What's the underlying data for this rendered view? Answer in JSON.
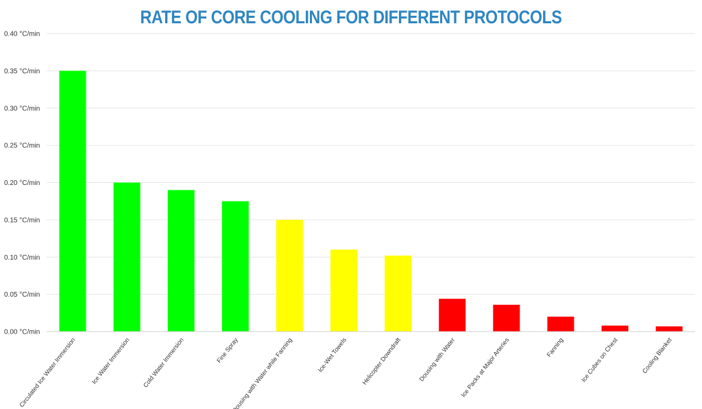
{
  "chart_data": {
    "type": "bar",
    "title": "RATE OF CORE COOLING FOR DIFFERENT PROTOCOLS",
    "xlabel": "",
    "ylabel": "",
    "ylim": [
      0,
      0.4
    ],
    "grid": true,
    "y_ticks": [
      {
        "value": 0.0,
        "label": "0.00 °C/min"
      },
      {
        "value": 0.05,
        "label": "0.05 °C/min"
      },
      {
        "value": 0.1,
        "label": "0.10 °C/min"
      },
      {
        "value": 0.15,
        "label": "0.15 °C/min"
      },
      {
        "value": 0.2,
        "label": "0.20 °C/min"
      },
      {
        "value": 0.25,
        "label": "0.25 °C/min"
      },
      {
        "value": 0.3,
        "label": "0.30 °C/min"
      },
      {
        "value": 0.35,
        "label": "0.35 °C/min"
      },
      {
        "value": 0.4,
        "label": "0.40 °C/min"
      }
    ],
    "categories": [
      "Circulated Ice Water Immersion",
      "Ice Water Immersion",
      "Cold Water Immersion",
      "Fine Spray",
      "Dousing with Water while Fanning",
      "Ice-Wet Towels",
      "Helicopter Downdraft",
      "Dousing with Water",
      "Ice Packs at Major Arteries",
      "Fanning",
      "Ice Cubes on Chest",
      "Cooling Blanket"
    ],
    "values": [
      0.35,
      0.2,
      0.19,
      0.175,
      0.15,
      0.11,
      0.102,
      0.044,
      0.036,
      0.02,
      0.008,
      0.007
    ],
    "bar_colors": [
      "#00ff00",
      "#00ff00",
      "#00ff00",
      "#00ff00",
      "#ffff00",
      "#ffff00",
      "#ffff00",
      "#ff0000",
      "#ff0000",
      "#ff0000",
      "#ff0000",
      "#ff0000"
    ]
  }
}
